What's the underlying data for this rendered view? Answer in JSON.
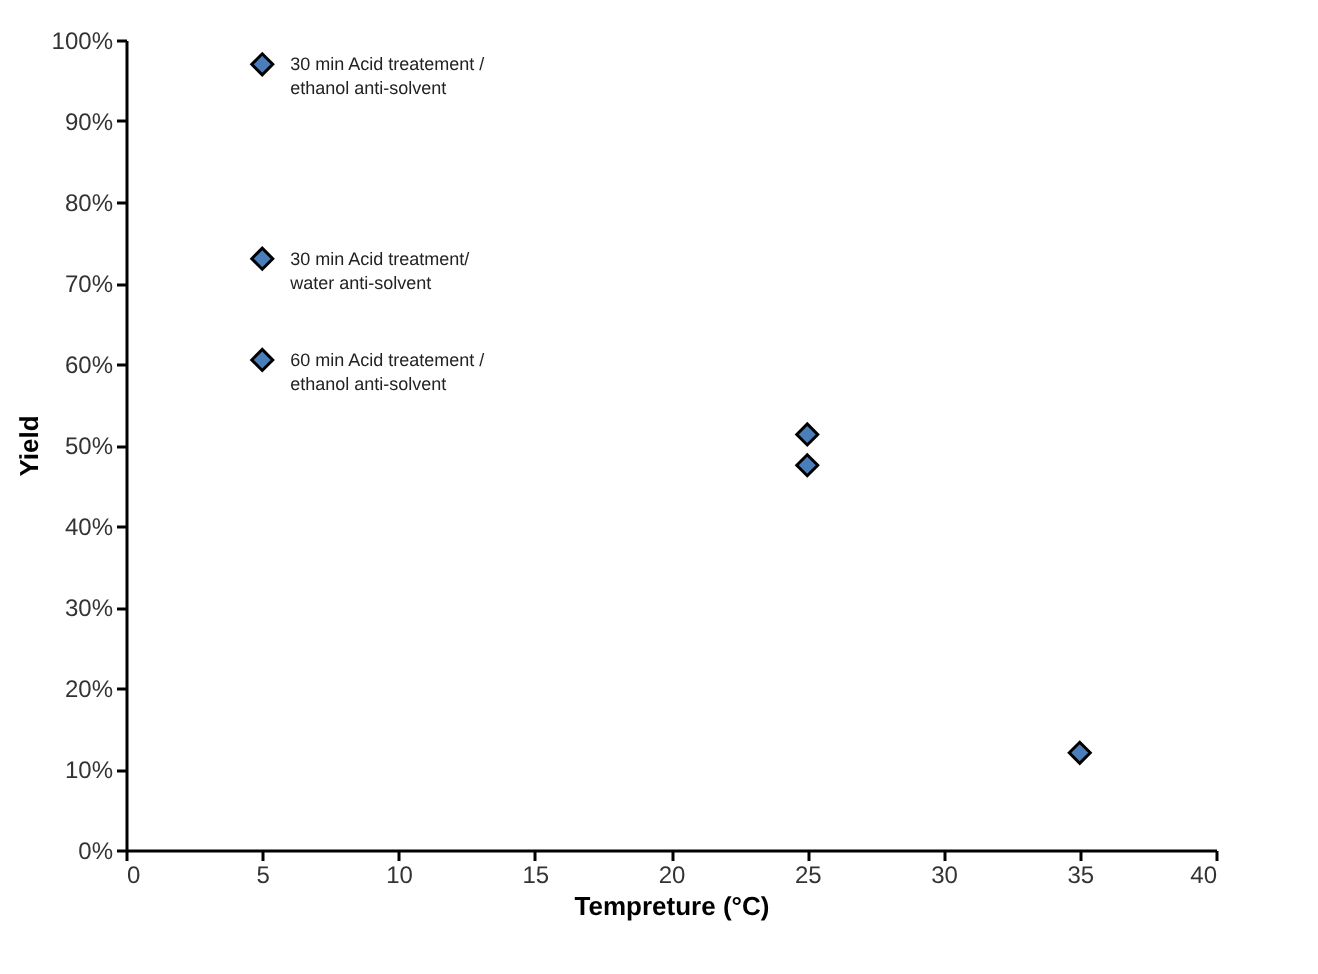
{
  "chart_data": {
    "type": "scatter",
    "xlabel": "Tempreture (°C)",
    "ylabel": "Yield",
    "x": [
      5,
      5,
      5,
      25,
      25,
      35
    ],
    "series": [
      {
        "color": "#4a7ebb",
        "values": [
          97,
          73,
          60.5,
          51.3,
          47.5,
          12
        ]
      }
    ],
    "marker": "diamond",
    "grid": false,
    "xlim": [
      0,
      40
    ],
    "xticks": [
      0,
      5,
      10,
      15,
      20,
      25,
      30,
      35,
      40
    ],
    "ylim": [
      0,
      100
    ],
    "yticks": [
      {
        "value": 0,
        "label": "0%"
      },
      {
        "value": 10,
        "label": "10%"
      },
      {
        "value": 20,
        "label": "20%"
      },
      {
        "value": 30,
        "label": "30%"
      },
      {
        "value": 40,
        "label": "40%"
      },
      {
        "value": 50,
        "label": "50%"
      },
      {
        "value": 60,
        "label": "60%"
      },
      {
        "value": 70,
        "label": "70%"
      },
      {
        "value": 80,
        "label": "80%"
      },
      {
        "value": 90,
        "label": "90%"
      },
      {
        "value": 100,
        "label": "100%"
      }
    ],
    "annotations": [
      "30 min Acid treatement /\nethanol anti-solvent",
      "30 min Acid treatment/\n water anti-solvent",
      "60 min Acid treatement /\nethanol anti-solvent"
    ]
  }
}
